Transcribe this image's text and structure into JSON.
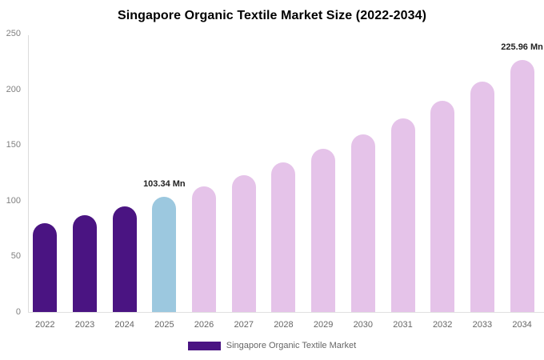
{
  "chart_data": {
    "type": "bar",
    "title": "Singapore Organic Textile Market Size (2022-2034)",
    "xlabel": "",
    "ylabel": "",
    "value_unit": "Mn",
    "categories": [
      "2022",
      "2023",
      "2024",
      "2025",
      "2026",
      "2027",
      "2028",
      "2029",
      "2030",
      "2031",
      "2032",
      "2033",
      "2034"
    ],
    "values": [
      79.62,
      86.85,
      94.74,
      103.34,
      112.72,
      122.95,
      134.11,
      146.28,
      159.56,
      174.04,
      189.84,
      207.07,
      225.96
    ],
    "bar_colors": [
      "#4a1482",
      "#4a1482",
      "#4a1482",
      "#9cc8df",
      "#e5c3e9",
      "#e5c3e9",
      "#e5c3e9",
      "#e5c3e9",
      "#e5c3e9",
      "#e5c3e9",
      "#e5c3e9",
      "#e5c3e9",
      "#e5c3e9"
    ],
    "annotations": [
      {
        "category": "2025",
        "text": "103.34 Mn"
      },
      {
        "category": "2034",
        "text": "225.96 Mn"
      }
    ],
    "ylim": [
      0,
      250
    ],
    "yticks": [
      0,
      50,
      100,
      150,
      200,
      250
    ],
    "grid": false,
    "legend_position": "bottom"
  },
  "legend": {
    "label": "Singapore Organic Textile Market",
    "swatch_color": "#4a1482"
  },
  "colors": {
    "historical_bar": "#4a1482",
    "current_year_bar": "#9cc8df",
    "forecast_bar": "#e5c3e9",
    "axis_line": "#dcdcdc",
    "tick_text": "#808080",
    "annotation_text": "#222222"
  }
}
